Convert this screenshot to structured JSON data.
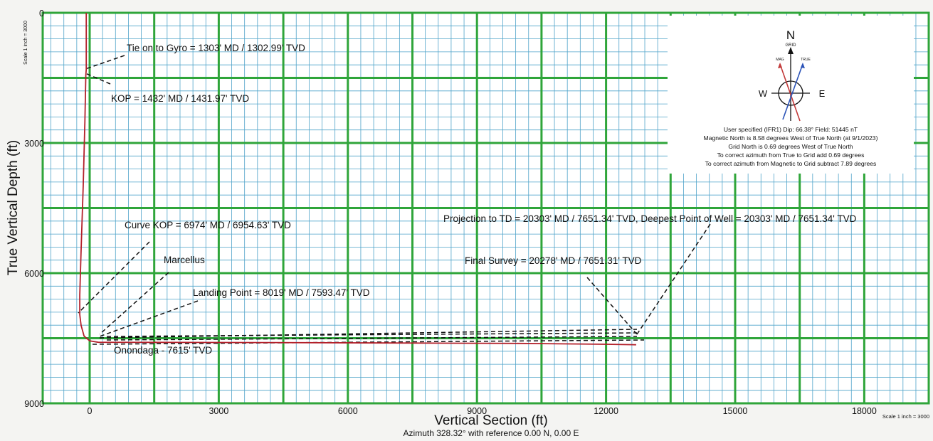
{
  "chart_data": {
    "type": "line",
    "xlabel": "Vertical Section (ft)",
    "ylabel": "True Vertical Depth (ft)",
    "subtitle": "Azimuth 328.32° with reference 0.00 N, 0.00 E",
    "scale_left": "Scale 1 inch = 3000",
    "scale_bottom": "Scale 1 inch = 3000",
    "xlim": [
      -1000,
      19000
    ],
    "ylim": [
      0,
      9000
    ],
    "y_inverted": true,
    "x_ticks": [
      0,
      3000,
      6000,
      9000,
      12000,
      15000,
      18000
    ],
    "y_ticks": [
      0,
      3000,
      6000,
      9000
    ],
    "grid": true,
    "colors": {
      "major_grid": "#2fa53a",
      "minor_grid": "#4fa3c9",
      "well": "#b3202a"
    },
    "series": [
      {
        "name": "",
        "x": [
          -80,
          -80,
          -90,
          -110,
          -150,
          -200,
          -230,
          -230,
          -200,
          -130,
          0,
          200,
          1500,
          4000,
          7000,
          10000,
          12000,
          12700
        ],
        "y": [
          0,
          1303,
          1432,
          2500,
          4000,
          5500,
          6500,
          6955,
          7200,
          7450,
          7560,
          7593,
          7595,
          7600,
          7610,
          7620,
          7640,
          7651
        ]
      }
    ],
    "annotations": [
      {
        "text": "Tie on to Gyro = 1303' MD / 1302.99' TVD"
      },
      {
        "text": "KOP = 1432' MD / 1431.97' TVD"
      },
      {
        "text": "Curve KOP = 6974' MD / 6954.63' TVD"
      },
      {
        "text": "Marcellus"
      },
      {
        "text": "Landing Point = 8019' MD / 7593.47' TVD"
      },
      {
        "text": "Onondaga - 7615' TVD"
      },
      {
        "text": "Projection to TD = 20303' MD / 7651.34' TVD, Deepest Point of Well = 20303' MD / 7651.34' TVD"
      },
      {
        "text": "Final Survey = 20278' MD / 7651.31' TVD"
      }
    ],
    "compass": {
      "north": "N",
      "grid": "GRID",
      "west": "W",
      "east": "E",
      "magnetic": "MAG",
      "true": "TRUE",
      "notes": [
        "User specified (IFR1) Dip: 66.38°  Field: 51445 nT",
        "Magnetic North is 8.58 degrees West of True North (at 9/1/2023)",
        "Grid North is 0.69 degrees West of True North",
        "To correct azimuth from True to Grid add 0.69 degrees",
        "To correct azimuth from Magnetic to Grid subtract 7.89 degrees"
      ]
    }
  }
}
